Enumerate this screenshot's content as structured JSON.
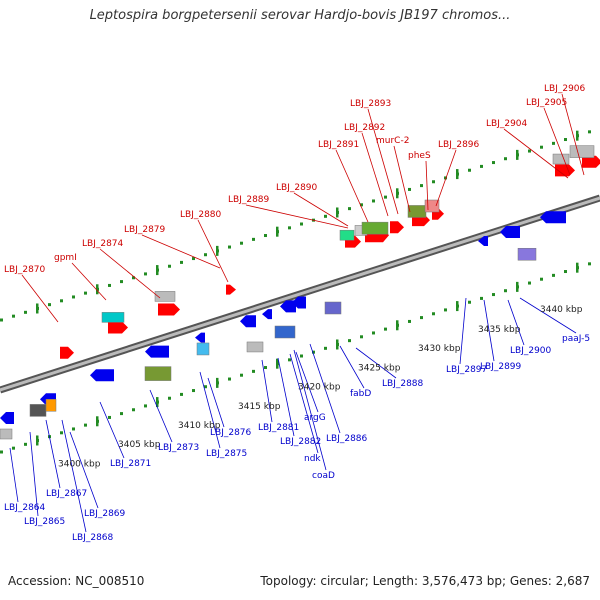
{
  "title": "Leptospira borgpetersenii serovar Hardjo-bovis JB197 chromos...",
  "footer": {
    "accession": "Accession: NC_008510",
    "summary": "Topology: circular; Length: 3,576,473 bp; Genes: 2,687"
  },
  "colors": {
    "forward_label": "#cc0000",
    "reverse_label": "#0000cc",
    "forward_gene": "#ff0000",
    "reverse_gene": "#0000ee",
    "tick": "#228b22",
    "backbone": "#888888"
  },
  "scale_ticks": [
    "3400 kbp",
    "3405 kbp",
    "3410 kbp",
    "3415 kbp",
    "3420 kbp",
    "3425 kbp",
    "3430 kbp",
    "3435 kbp",
    "3440 kbp"
  ],
  "forward_labels": [
    "LBJ_2870",
    "gpmI",
    "LBJ_2874",
    "LBJ_2879",
    "LBJ_2880",
    "LBJ_2889",
    "LBJ_2890",
    "LBJ_2891",
    "LBJ_2892",
    "LBJ_2893",
    "murC-2",
    "pheS",
    "LBJ_2896",
    "LBJ_2904",
    "LBJ_2905",
    "LBJ_2906"
  ],
  "reverse_labels": [
    "LBJ_2864",
    "LBJ_2865",
    "LBJ_2867",
    "LBJ_2868",
    "LBJ_2869",
    "LBJ_2871",
    "LBJ_2873",
    "LBJ_2875",
    "LBJ_2876",
    "LBJ_2881",
    "LBJ_2882",
    "ndk",
    "argG",
    "coaD",
    "LBJ_2886",
    "fabD",
    "LBJ_2888",
    "LBJ_2897",
    "LBJ_2899",
    "LBJ_2900",
    "paaJ-5"
  ]
}
